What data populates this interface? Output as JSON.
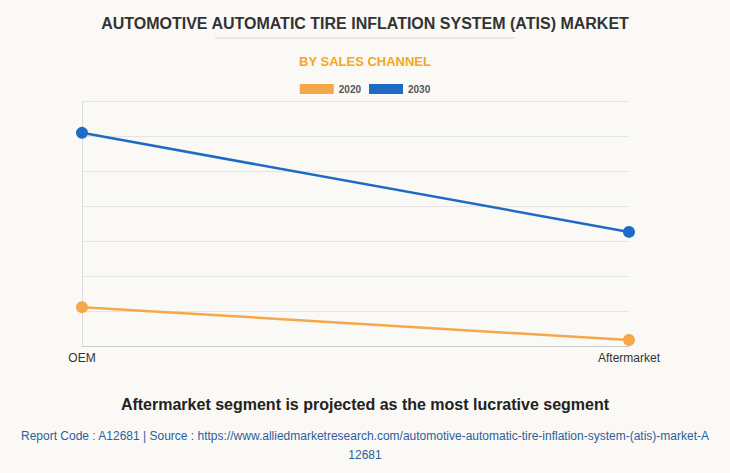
{
  "chart_data": {
    "type": "line",
    "title": "AUTOMOTIVE AUTOMATIC TIRE INFLATION SYSTEM (ATIS) MARKET",
    "subtitle": "BY SALES CHANNEL",
    "annotations": [
      "Aftermarket segment is projected as the most lucrative segment",
      "Report Code : A12681  |  Source : https://www.alliedmarketresearch.com/automotive-automatic-tire-inflation-system-(atis)-market-A12681"
    ],
    "categories": [
      "OEM",
      "Aftermarket"
    ],
    "series": [
      {
        "name": "2020",
        "color": "#f4a84b",
        "values": [
          1.11,
          0.17
        ]
      },
      {
        "name": "2030",
        "color": "#1e6bc6",
        "values": [
          6.09,
          3.26
        ]
      }
    ],
    "ylim": [
      0,
      7
    ],
    "yticks": [
      0,
      1,
      2,
      3,
      4,
      5,
      6,
      7
    ],
    "grid": true,
    "legend": "top",
    "tick_labels": "x",
    "marker": "circle"
  }
}
